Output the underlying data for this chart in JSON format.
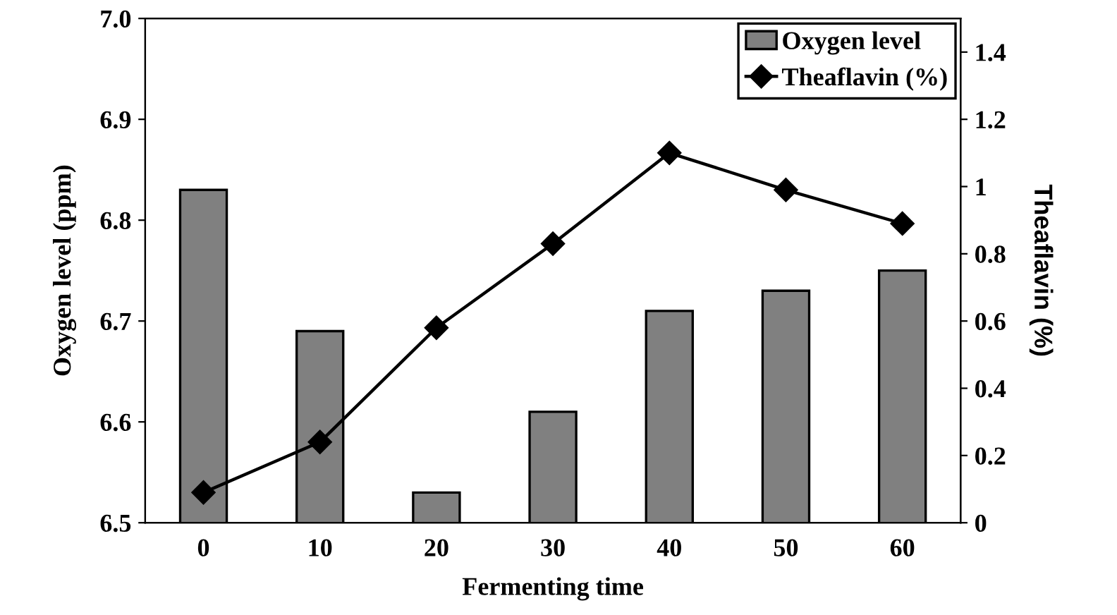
{
  "chart_data": {
    "type": "bar",
    "xlabel": "Fermenting time",
    "ylabel": "Oxygen level (ppm)",
    "y2label": "Theaflavin (%)",
    "categories": [
      "0",
      "10",
      "20",
      "30",
      "40",
      "50",
      "60"
    ],
    "series": [
      {
        "name": "Oxygen level",
        "color": "#808080",
        "values": [
          6.83,
          6.69,
          6.53,
          6.61,
          6.71,
          6.73,
          6.75
        ]
      },
      {
        "name": "Theaflavin (%)",
        "type": "line",
        "axis": "y2",
        "color": "#000000",
        "marker": "diamond",
        "values": [
          0.09,
          0.24,
          0.58,
          0.83,
          1.1,
          0.99,
          0.89
        ]
      }
    ],
    "ylim": [
      6.5,
      7.0
    ],
    "yticks": [
      6.5,
      6.6,
      6.7,
      6.8,
      6.9,
      {
        "value": 7.0,
        "label": "7.0"
      }
    ],
    "y2lim": [
      0,
      1.5
    ],
    "y2ticks": [
      0,
      0.2,
      0.4,
      0.6,
      0.8,
      1,
      1.2,
      1.4
    ],
    "grid": false,
    "legend": "top right"
  }
}
